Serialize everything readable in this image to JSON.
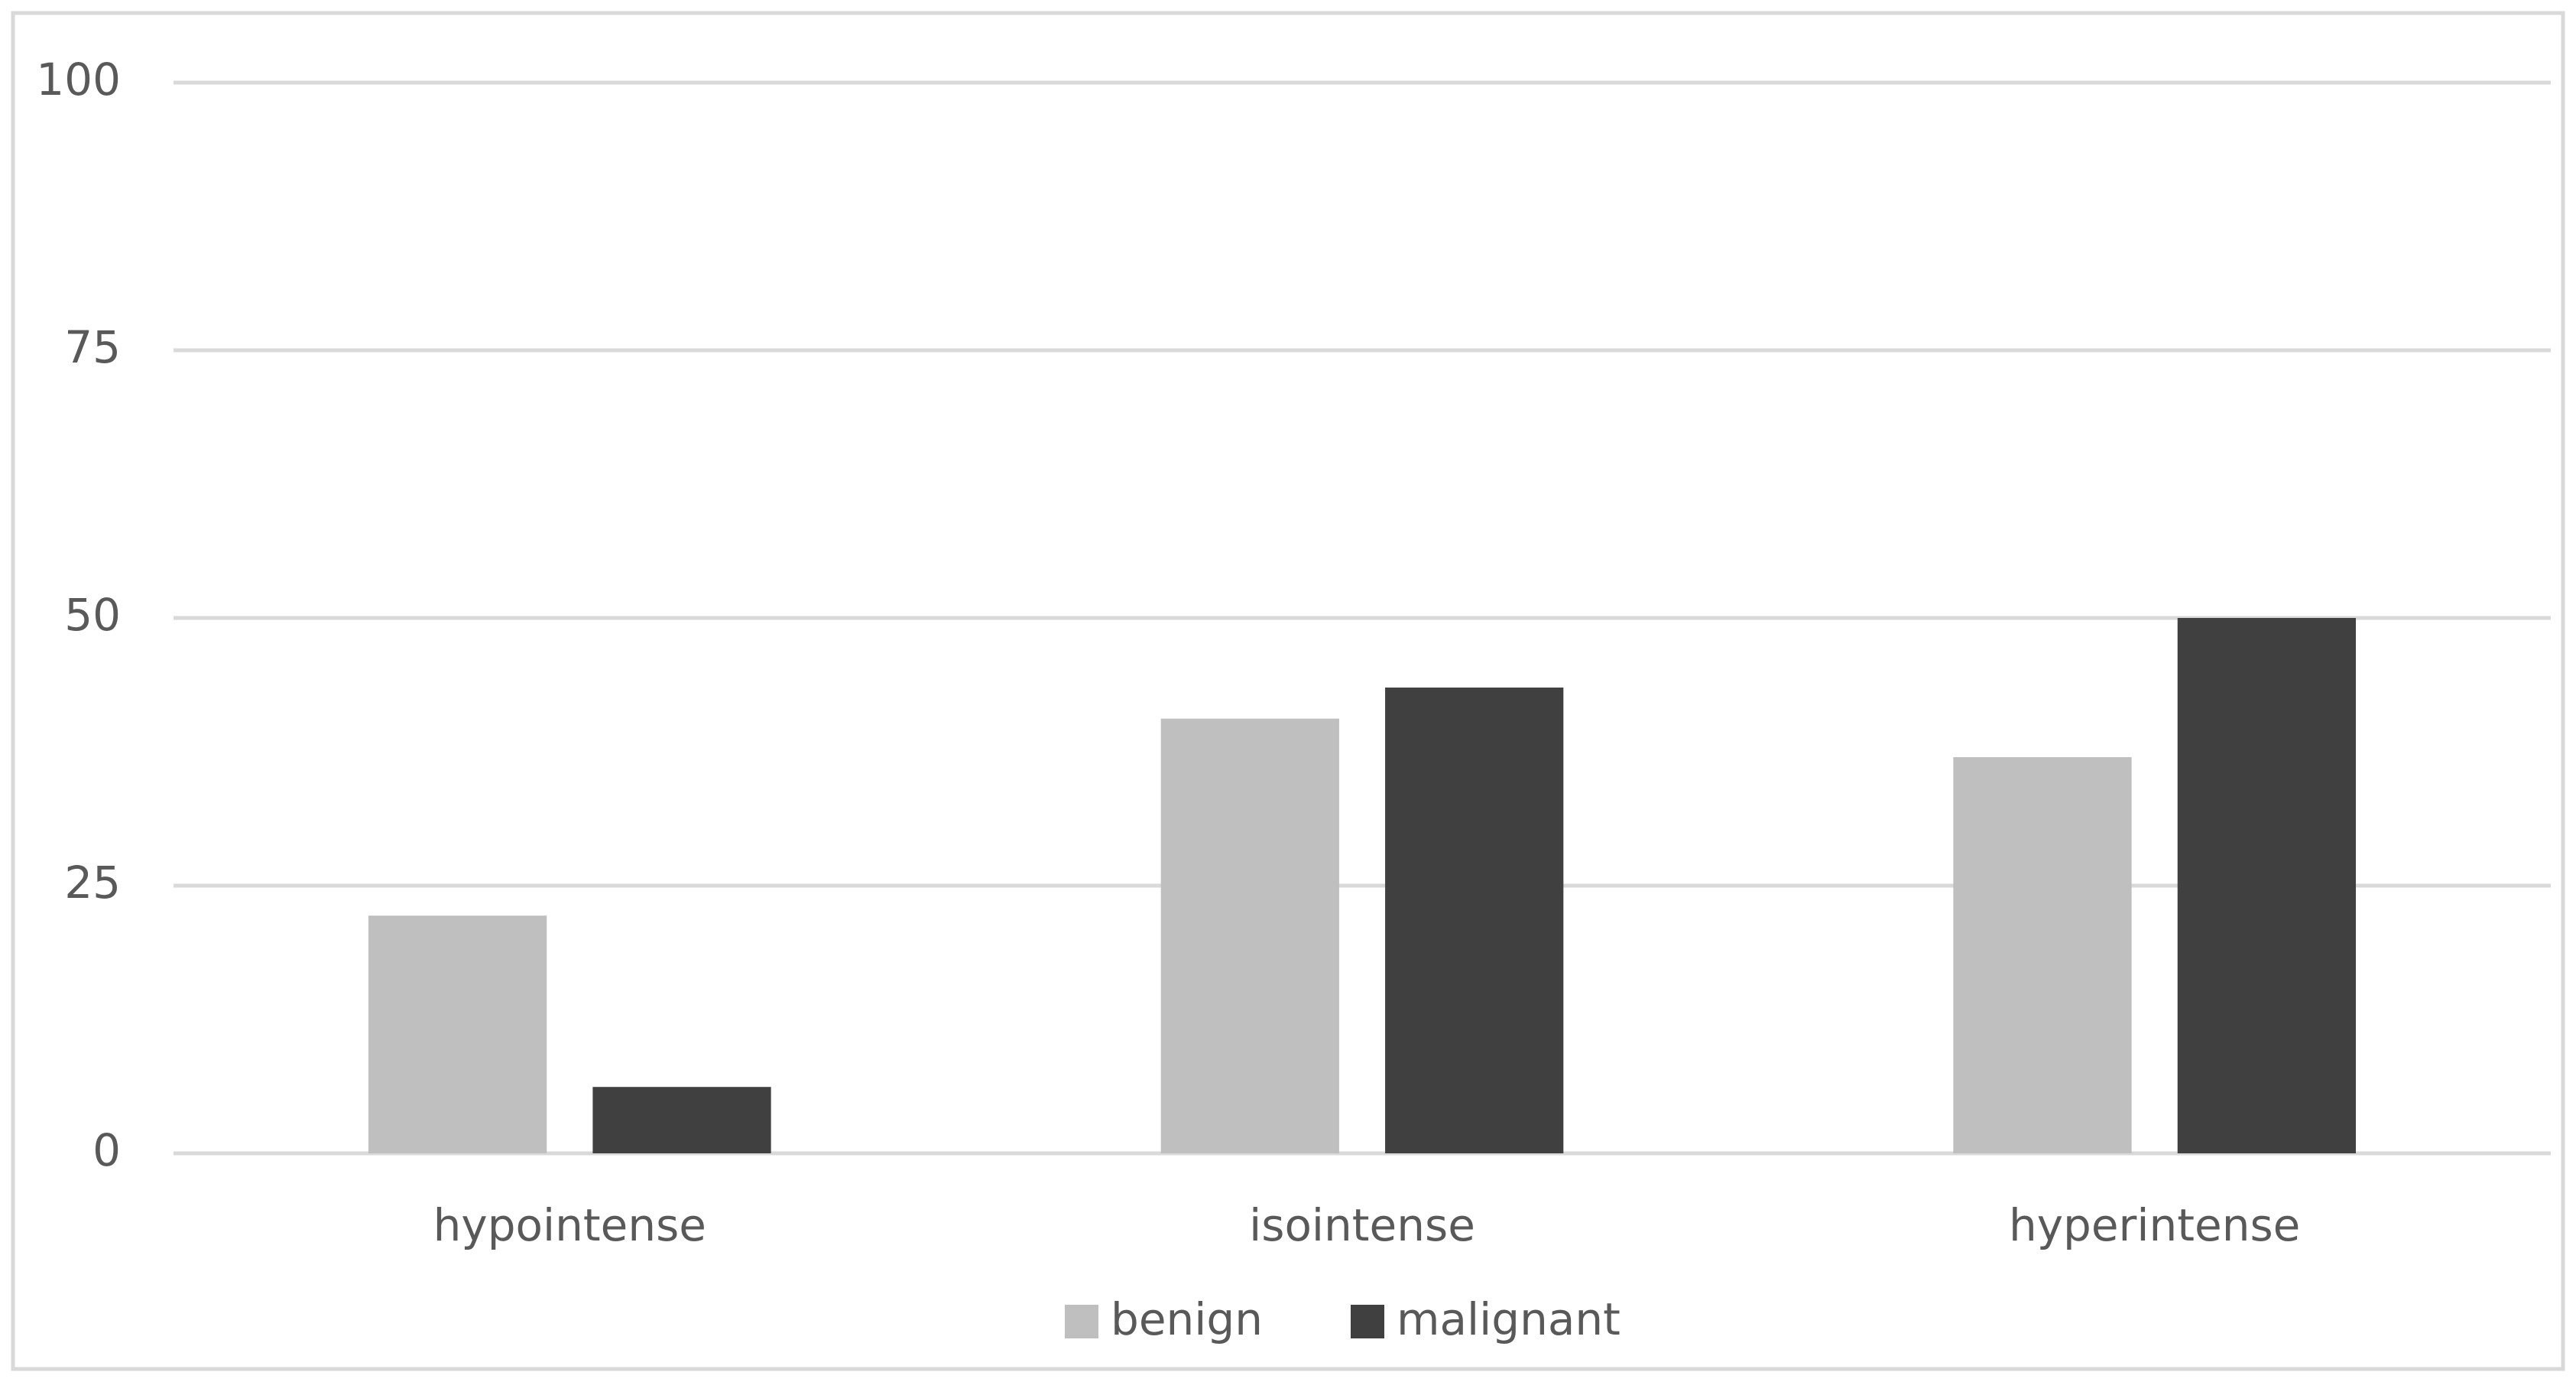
{
  "chart_data": {
    "type": "bar",
    "categories": [
      "hypointense",
      "isointense",
      "hyperintense"
    ],
    "series": [
      {
        "name": "benign",
        "color": "#bfbfbf",
        "values": [
          22.2,
          40.6,
          37.0
        ]
      },
      {
        "name": "malignant",
        "color": "#404040",
        "values": [
          6.2,
          43.5,
          50
        ]
      }
    ],
    "ylim": [
      0,
      100
    ],
    "yticks": [
      0,
      25,
      50,
      75,
      100
    ],
    "grid": true,
    "legend": "bottom"
  }
}
